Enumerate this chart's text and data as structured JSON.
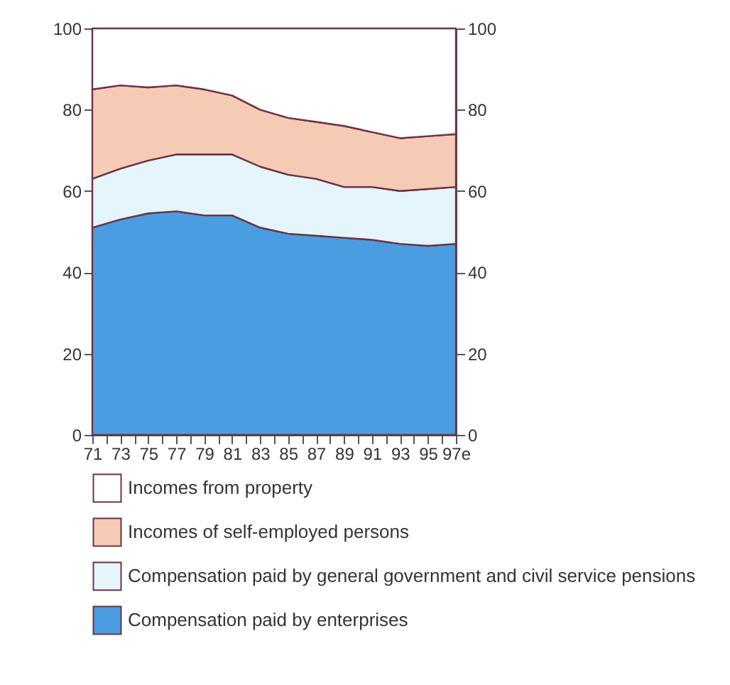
{
  "chart_data": {
    "type": "area",
    "stacked": true,
    "x": [
      71,
      73,
      75,
      77,
      79,
      81,
      83,
      85,
      87,
      89,
      91,
      93,
      95,
      97
    ],
    "series": [
      {
        "name": "Compensation paid by enterprises",
        "color": "#4a9de0",
        "values": [
          51,
          53,
          54.5,
          55,
          54,
          54,
          51,
          49.5,
          49,
          48.5,
          48,
          47,
          46.5,
          47
        ]
      },
      {
        "name": "Compensation paid by general government and civil service pensions",
        "color": "#e4f5fb",
        "values": [
          12,
          12.5,
          13,
          14,
          15,
          15,
          15,
          14.5,
          14,
          12.5,
          13,
          13,
          14,
          14
        ]
      },
      {
        "name": "Incomes of self-employed persons",
        "color": "#f6cbb6",
        "values": [
          22,
          20.5,
          18,
          17,
          16,
          14.5,
          14,
          14,
          14,
          15,
          13.5,
          13,
          13,
          13
        ]
      },
      {
        "name": "Incomes from property",
        "color": "#ffffff",
        "values": [
          15,
          14,
          14.5,
          14,
          15,
          16.5,
          20,
          22,
          23,
          24,
          25.5,
          27,
          26.5,
          26
        ]
      }
    ],
    "xlim": [
      71,
      97
    ],
    "xticks": [
      71,
      {
        "value": 72,
        "label": null
      },
      73,
      {
        "value": 74,
        "label": null
      },
      75,
      {
        "value": 76,
        "label": null
      },
      77,
      {
        "value": 78,
        "label": null
      },
      79,
      {
        "value": 80,
        "label": null
      },
      81,
      {
        "value": 82,
        "label": null
      },
      83,
      {
        "value": 84,
        "label": null
      },
      85,
      {
        "value": 86,
        "label": null
      },
      87,
      {
        "value": 88,
        "label": null
      },
      89,
      {
        "value": 90,
        "label": null
      },
      91,
      {
        "value": 92,
        "label": null
      },
      93,
      {
        "value": 94,
        "label": null
      },
      95,
      {
        "value": 96,
        "label": null
      },
      {
        "value": 97,
        "label": "97e"
      }
    ],
    "ylim": [
      0,
      100
    ],
    "yticks": [
      0,
      20,
      40,
      60,
      80,
      100
    ],
    "y2lim": [
      0,
      100
    ],
    "y2ticks": [
      0,
      20,
      40,
      60,
      80,
      100
    ],
    "legend": "bottom"
  }
}
